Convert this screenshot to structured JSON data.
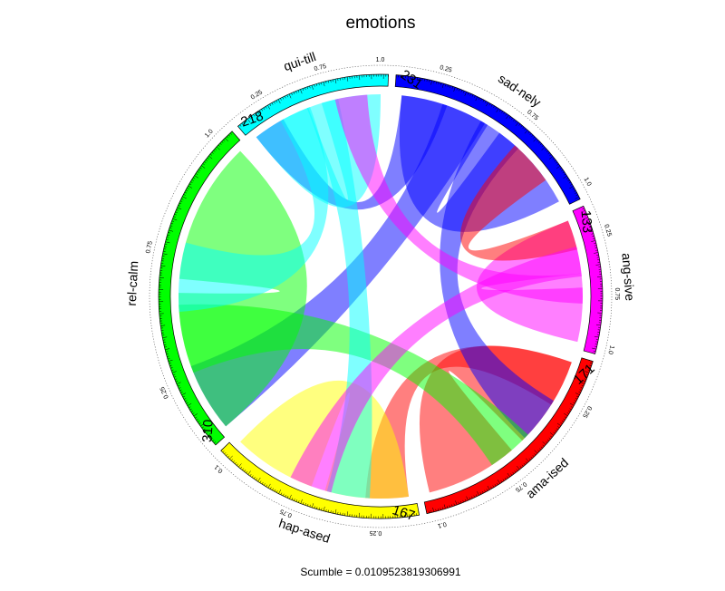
{
  "chart_data": {
    "type": "chord",
    "title": "emotions",
    "footer": "Scumble = 0.0109523819306991",
    "segments": [
      {
        "label": "sad-nely",
        "count": "231",
        "color": "#0000ff"
      },
      {
        "label": "ang-sive",
        "count": "133",
        "color": "#ff00ff"
      },
      {
        "label": "ama-ised",
        "count": "171",
        "color": "#ff0000"
      },
      {
        "label": "hap-ased",
        "count": "167",
        "color": "#ffff00"
      },
      {
        "label": "rel-calm",
        "count": "310",
        "color": "#00ff00"
      },
      {
        "label": "qui-till",
        "count": "218",
        "color": "#00ffff"
      }
    ],
    "scale_ticks": [
      [
        "0.25",
        "0.75",
        "1.0"
      ],
      [
        "0.25",
        "0.75",
        "1.0"
      ],
      [
        "0.25",
        "0.75",
        "0.1"
      ],
      [
        "0.25",
        "0.75",
        "0.1"
      ],
      [
        "0.25",
        "0.75",
        "1.0"
      ],
      [
        "0.25",
        "0.75",
        "1.0"
      ]
    ],
    "chords": [
      {
        "source": "sad-nely",
        "target": "sad-nely",
        "color": "#0000ff",
        "opacity": 0.5
      },
      {
        "source": "sad-nely",
        "target": "qui-till",
        "color": "#0000ff",
        "opacity": 0.5
      },
      {
        "source": "sad-nely",
        "target": "rel-calm",
        "color": "#0000ff",
        "opacity": 0.5
      },
      {
        "source": "ang-sive",
        "target": "ang-sive",
        "color": "#ff00ff",
        "opacity": 0.5
      },
      {
        "source": "ama-ised",
        "target": "ama-ised",
        "color": "#ff0000",
        "opacity": 0.5
      },
      {
        "source": "ama-ised",
        "target": "hap-ased",
        "color": "#ff0000",
        "opacity": 0.5
      },
      {
        "source": "sad-nely",
        "target": "ama-ised",
        "color": "#0000ff",
        "opacity": 0.5
      },
      {
        "source": "hap-ased",
        "target": "hap-ased",
        "color": "#ffff00",
        "opacity": 0.5
      },
      {
        "source": "rel-calm",
        "target": "rel-calm",
        "color": "#00ff00",
        "opacity": 0.5
      },
      {
        "source": "rel-calm",
        "target": "ama-ised",
        "color": "#00ff00",
        "opacity": 0.5
      },
      {
        "source": "qui-till",
        "target": "qui-till",
        "color": "#00ffff",
        "opacity": 0.5
      },
      {
        "source": "qui-till",
        "target": "rel-calm",
        "color": "#00ffff",
        "opacity": 0.5
      },
      {
        "source": "qui-till",
        "target": "hap-ased",
        "color": "#00ffff",
        "opacity": 0.5
      },
      {
        "source": "ang-sive",
        "target": "sad-nely",
        "color": "#ff0000",
        "opacity": 0.5
      },
      {
        "source": "ang-sive",
        "target": "hap-ased",
        "color": "#ff00ff",
        "opacity": 0.5
      },
      {
        "source": "ang-sive",
        "target": "qui-till",
        "color": "#ff00ff",
        "opacity": 0.5
      }
    ]
  }
}
